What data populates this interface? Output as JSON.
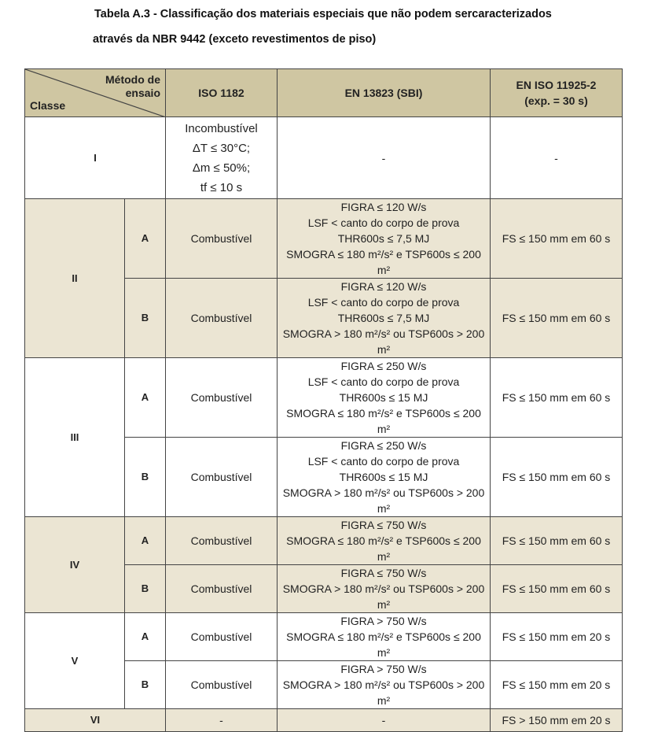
{
  "title_line1": "Tabela A.3 - Classificação dos materiais especiais que não podem sercaracterizados",
  "title_line2": "através da NBR 9442 (exceto revestimentos de piso)",
  "header": {
    "metodo": "Método de ensaio",
    "classe": "Classe",
    "col1": "ISO 1182",
    "col2": "EN 13823 (SBI)",
    "col3_line1": "EN ISO 11925-2",
    "col3_line2": "(exp. = 30 s)"
  },
  "colors": {
    "header_bg": "#cfc6a2",
    "shaded_bg": "#ebe5d3"
  },
  "rows": [
    {
      "classe": "I",
      "sub": "",
      "iso1182": [
        "Incombustível",
        "ΔT ≤ 30°C;",
        "Δm ≤ 50%;",
        "tf ≤ 10 s"
      ],
      "en13823": [
        "-"
      ],
      "en11925": "-"
    },
    {
      "classe": "II",
      "sub": "A",
      "iso1182": [
        "Combustível"
      ],
      "en13823": [
        "FIGRA ≤ 120 W/s",
        "LSF < canto do corpo de prova",
        "THR600s ≤ 7,5 MJ",
        "SMOGRA ≤ 180 m²/s² e TSP600s ≤ 200 m²"
      ],
      "en11925": "FS ≤ 150 mm em 60 s"
    },
    {
      "classe": "II",
      "sub": "B",
      "iso1182": [
        "Combustível"
      ],
      "en13823": [
        "FIGRA ≤ 120 W/s",
        "LSF < canto do corpo de prova",
        "THR600s ≤ 7,5 MJ",
        "SMOGRA > 180 m²/s² ou TSP600s > 200 m²"
      ],
      "en11925": "FS ≤ 150 mm em 60 s"
    },
    {
      "classe": "III",
      "sub": "A",
      "iso1182": [
        "Combustível"
      ],
      "en13823": [
        "FIGRA ≤ 250 W/s",
        "LSF < canto do corpo de prova",
        "THR600s ≤ 15 MJ",
        "SMOGRA ≤ 180 m²/s² e TSP600s ≤ 200 m²"
      ],
      "en11925": "FS ≤ 150 mm em 60 s"
    },
    {
      "classe": "III",
      "sub": "B",
      "iso1182": [
        "Combustível"
      ],
      "en13823": [
        "FIGRA ≤ 250 W/s",
        "LSF < canto do corpo de prova",
        "THR600s ≤ 15 MJ",
        "SMOGRA > 180 m²/s² ou TSP600s > 200 m²"
      ],
      "en11925": "FS ≤ 150 mm em 60 s"
    },
    {
      "classe": "IV",
      "sub": "A",
      "iso1182": [
        "Combustível"
      ],
      "en13823": [
        "FIGRA ≤ 750 W/s",
        "SMOGRA ≤ 180 m²/s² e TSP600s ≤ 200 m²"
      ],
      "en11925": "FS ≤ 150 mm em 60 s"
    },
    {
      "classe": "IV",
      "sub": "B",
      "iso1182": [
        "Combustível"
      ],
      "en13823": [
        "FIGRA ≤ 750 W/s",
        "SMOGRA > 180 m²/s² ou TSP600s > 200 m²"
      ],
      "en11925": "FS ≤ 150 mm em 60 s"
    },
    {
      "classe": "V",
      "sub": "A",
      "iso1182": [
        "Combustível"
      ],
      "en13823": [
        "FIGRA > 750 W/s",
        "SMOGRA ≤ 180 m²/s² e TSP600s ≤ 200 m²"
      ],
      "en11925": "FS ≤ 150 mm em 20 s"
    },
    {
      "classe": "V",
      "sub": "B",
      "iso1182": [
        "Combustível"
      ],
      "en13823": [
        "FIGRA > 750 W/s",
        "SMOGRA > 180 m²/s² ou TSP600s > 200 m²"
      ],
      "en11925": "FS ≤ 150 mm em 20 s"
    },
    {
      "classe": "VI",
      "sub": "",
      "iso1182": [
        "-"
      ],
      "en13823": [
        "-"
      ],
      "en11925": "FS > 150 mm em 20 s"
    }
  ]
}
